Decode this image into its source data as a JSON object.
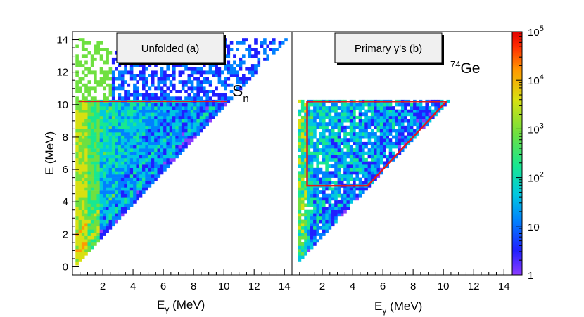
{
  "chart_data": [
    {
      "type": "heatmap",
      "panel": "a",
      "label": "Unfolded (a)",
      "xlabel": "E",
      "xlabel_sub": "γ",
      "xlabel_unit": " (MeV)",
      "ylabel": "E (MeV)",
      "xlim": [
        0,
        14.5
      ],
      "ylim": [
        -0.5,
        14.5
      ],
      "xticks": [
        2,
        4,
        6,
        8,
        10,
        12,
        14
      ],
      "yticks": [
        0,
        2,
        4,
        6,
        8,
        10,
        12,
        14
      ],
      "diagonal": "counts populated for Eγ ≤ E",
      "annotations": {
        "sn_symbol": "S",
        "sn_sub": "n",
        "sn_line_y": 10.2,
        "sn_line_x": [
          0.4,
          10.2
        ]
      }
    },
    {
      "type": "heatmap",
      "panel": "b",
      "label": "Primary γ's (b)",
      "isotope_mass": "74",
      "isotope_symbol": "Ge",
      "xlabel": "E",
      "xlabel_sub": "γ",
      "xlabel_unit": " (MeV)",
      "xlim": [
        0,
        14.5
      ],
      "ylim": [
        -0.5,
        14.5
      ],
      "xticks": [
        2,
        4,
        6,
        8,
        10,
        12,
        14
      ],
      "selection_region": [
        [
          1.0,
          5.0
        ],
        [
          1.0,
          10.2
        ],
        [
          10.2,
          10.2
        ],
        [
          5.0,
          5.0
        ]
      ]
    }
  ],
  "colorbar": {
    "scale": "log",
    "min": 1,
    "max": 100000,
    "ticks": [
      {
        "value": 1,
        "label": "1"
      },
      {
        "value": 10,
        "label": "10"
      },
      {
        "value": 100,
        "mant": "10",
        "exp": "2"
      },
      {
        "value": 1000,
        "mant": "10",
        "exp": "3"
      },
      {
        "value": 10000,
        "mant": "10",
        "exp": "4"
      },
      {
        "value": 100000,
        "mant": "10",
        "exp": "5"
      }
    ],
    "colors": [
      "#8c3cff",
      "#1f1fff",
      "#0080ff",
      "#00c8e0",
      "#18e890",
      "#6ee040",
      "#d8e010",
      "#ff9a00",
      "#ff2a00",
      "#e00000"
    ]
  },
  "style": {
    "line_color": "#e31a1c"
  }
}
